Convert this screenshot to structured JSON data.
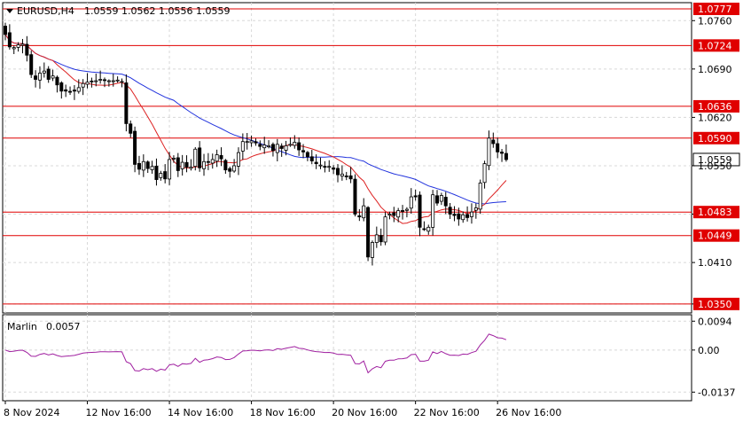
{
  "header": {
    "symbol": "EURUSD,H4",
    "ohlc": "1.0559 1.0562 1.0556 1.0559"
  },
  "indicator": {
    "name": "Marlin",
    "value": "0.0057"
  },
  "colors": {
    "up_candle": "#ffffff",
    "down_candle": "#000000",
    "ma_fast": "#dd2222",
    "ma_slow": "#2233dd",
    "oscillator": "#a020a0",
    "level": "#e00000",
    "grid": "#d8d8d8",
    "price_label": "#ffffff"
  },
  "chart_data": [
    {
      "type": "candlestick",
      "title": "",
      "ylim": [
        1.0337,
        1.0786
      ],
      "y_ticks": [
        "1.0760",
        "1.0690",
        "1.0620",
        "1.0550",
        "1.0480",
        "1.0410",
        "1.0350"
      ],
      "x_tick_labels": [
        "8 Nov 2024",
        "12 Nov 16:00",
        "14 Nov 16:00",
        "18 Nov 16:00",
        "20 Nov 16:00",
        "22 Nov 16:00",
        "26 Nov 16:00"
      ],
      "x_tick_index": [
        0,
        19,
        38,
        57,
        76,
        95,
        114
      ],
      "levels": [
        "1.0777",
        "1.0724",
        "1.0636",
        "1.0590",
        "1.0483",
        "1.0449",
        "1.0350"
      ],
      "current_price": "1.0559",
      "closes": [
        1.074,
        1.0722,
        1.0721,
        1.0725,
        1.0726,
        1.071,
        1.0682,
        1.0675,
        1.0684,
        1.0687,
        1.0675,
        1.068,
        1.0667,
        1.0658,
        1.0658,
        1.0657,
        1.0658,
        1.0663,
        1.0669,
        1.0671,
        1.0672,
        1.0673,
        1.0675,
        1.0674,
        1.0673,
        1.0673,
        1.0674,
        1.0672,
        1.0611,
        1.0597,
        1.0552,
        1.0545,
        1.0556,
        1.0546,
        1.0549,
        1.053,
        1.0539,
        1.0531,
        1.0559,
        1.0561,
        1.0543,
        1.0555,
        1.0548,
        1.0548,
        1.0574,
        1.0547,
        1.0556,
        1.0556,
        1.0559,
        1.0566,
        1.056,
        1.0544,
        1.0542,
        1.055,
        1.0569,
        1.0585,
        1.0585,
        1.0586,
        1.0583,
        1.0578,
        1.058,
        1.0579,
        1.0572,
        1.0581,
        1.0575,
        1.0579,
        1.0581,
        1.0584,
        1.0573,
        1.057,
        1.0563,
        1.0557,
        1.0553,
        1.0551,
        1.0548,
        1.0549,
        1.0545,
        1.0537,
        1.0538,
        1.0534,
        1.0531,
        1.048,
        1.0476,
        1.0492,
        1.0418,
        1.0439,
        1.045,
        1.044,
        1.0476,
        1.048,
        1.0478,
        1.0485,
        1.0484,
        1.0487,
        1.0505,
        1.0505,
        1.0461,
        1.0458,
        1.0461,
        1.0508,
        1.0496,
        1.0507,
        1.0492,
        1.048,
        1.0478,
        1.0473,
        1.0479,
        1.0475,
        1.0483,
        1.0489,
        1.0525,
        1.0553,
        1.059,
        1.0582,
        1.057,
        1.0568,
        1.0559
      ],
      "series": [
        {
          "values": []
        },
        {
          "values": []
        }
      ]
    },
    {
      "type": "line",
      "title": "",
      "ylim": [
        -0.0165,
        0.0115
      ],
      "y_ticks": [
        "0.0094",
        "0.00",
        "-0.0137"
      ]
    }
  ]
}
